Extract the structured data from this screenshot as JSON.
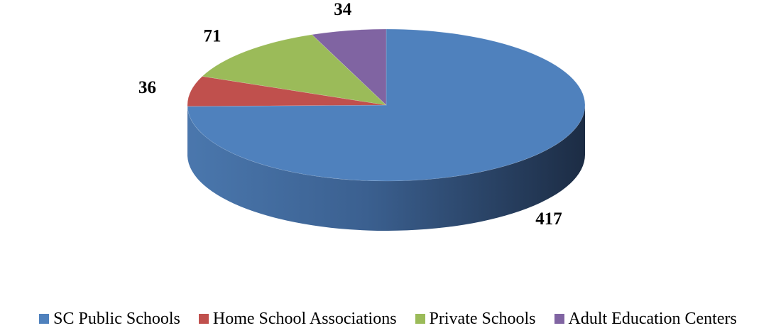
{
  "chart_data": {
    "type": "pie",
    "style": "3d",
    "categories": [
      "SC Public Schools",
      "Home School Associations",
      "Private Schools",
      "Adult Education Centers"
    ],
    "values": [
      417,
      36,
      71,
      34
    ],
    "colors": [
      "#4f81bd",
      "#c0504d",
      "#9bbb59",
      "#8064a2"
    ],
    "data_labels": [
      "417",
      "36",
      "71",
      "34"
    ],
    "legend_position": "bottom"
  },
  "legend": {
    "items": [
      {
        "label": "SC Public Schools",
        "color": "#4f81bd"
      },
      {
        "label": "Home School Associations",
        "color": "#c0504d"
      },
      {
        "label": "Private Schools",
        "color": "#9bbb59"
      },
      {
        "label": "Adult Education Centers",
        "color": "#8064a2"
      }
    ]
  }
}
